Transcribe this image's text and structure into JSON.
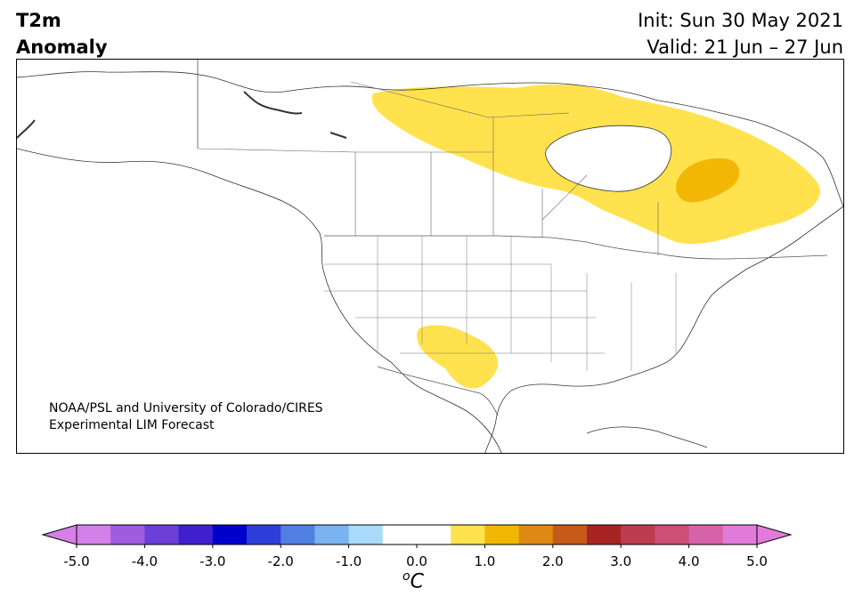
{
  "header": {
    "title_line1": "T2m",
    "title_line2": "Anomaly",
    "init": "Init: Sun 30 May 2021",
    "valid": "Valid: 21 Jun – 27 Jun"
  },
  "map": {
    "credit_line1": "NOAA/PSL and University of Colorado/CIRES",
    "credit_line2": "Experimental LIM Forecast",
    "anomaly_regions": [
      {
        "name": "Canada / Hudson Bay warm anomaly",
        "level": "0.5–1.5",
        "color": "#ffe24d"
      },
      {
        "name": "Quebec warm core",
        "level": "1.5–2.0",
        "color": "#f2b705"
      },
      {
        "name": "Southern Plains warm anomaly",
        "level": "0.5–1.5",
        "color": "#ffe24d"
      }
    ]
  },
  "colorbar": {
    "unit_symbol": "o",
    "unit_letter": "C",
    "ticks": [
      "-5.0",
      "-4.0",
      "-3.0",
      "-2.0",
      "-1.0",
      "0.0",
      "1.0",
      "2.0",
      "3.0",
      "4.0",
      "5.0"
    ],
    "colors": [
      "#d580e8",
      "#9e5ce0",
      "#6b3fd8",
      "#3f1fd0",
      "#0000cc",
      "#2e3fd9",
      "#4f7fe0",
      "#78b3ef",
      "#a8dbfa",
      "#ffffff",
      "#ffffff",
      "#ffe24d",
      "#f2b705",
      "#de8a12",
      "#c65a18",
      "#a82424",
      "#bd3c50",
      "#cc4f77",
      "#d663a8",
      "#e27ad9"
    ],
    "under_color": "#d580e8",
    "over_color": "#e27ad9"
  }
}
